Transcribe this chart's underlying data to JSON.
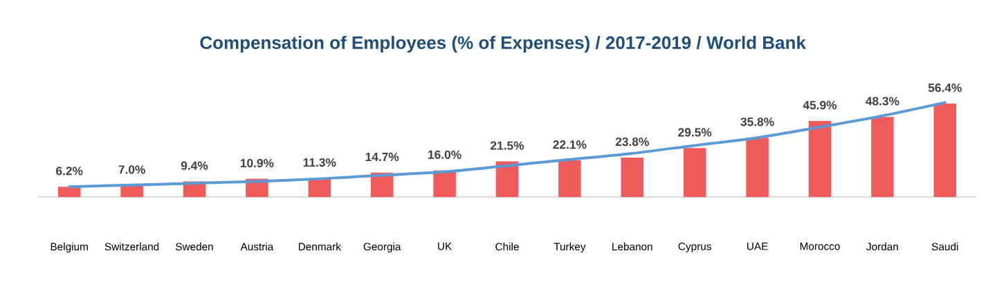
{
  "chart_data": {
    "type": "bar",
    "title": "Compensation of Employees (% of Expenses) / 2017-2019 / World Bank",
    "categories": [
      "Belgium",
      "Switzerland",
      "Sweden",
      "Austria",
      "Denmark",
      "Georgia",
      "UK",
      "Chile",
      "Turkey",
      "Lebanon",
      "Cyprus",
      "UAE",
      "Morocco",
      "Jordan",
      "Saudi"
    ],
    "tick_labels": "x",
    "grid": false,
    "series": [
      {
        "color": "#ef5a5a",
        "values": [
          6.2,
          7.0,
          9.4,
          10.9,
          11.3,
          14.7,
          16.0,
          21.5,
          22.1,
          23.8,
          29.5,
          35.8,
          45.9,
          48.3,
          56.4
        ],
        "value_labels": [
          "6.2%",
          "7.0%",
          "9.4%",
          "10.9%",
          "11.3%",
          "14.7%",
          "16.0%",
          "21.5%",
          "22.1%",
          "23.8%",
          "29.5%",
          "35.8%",
          "45.9%",
          "48.3%",
          "56.4%"
        ]
      },
      {
        "type": "line",
        "color": "#5b9bd5",
        "marker": "none",
        "line_style": "solid",
        "values": [
          6.2,
          7.2,
          8.3,
          9.4,
          11.0,
          13.1,
          15.2,
          18.9,
          22.6,
          26.3,
          31.1,
          35.8,
          42.2,
          49.0,
          57.0
        ]
      }
    ]
  }
}
